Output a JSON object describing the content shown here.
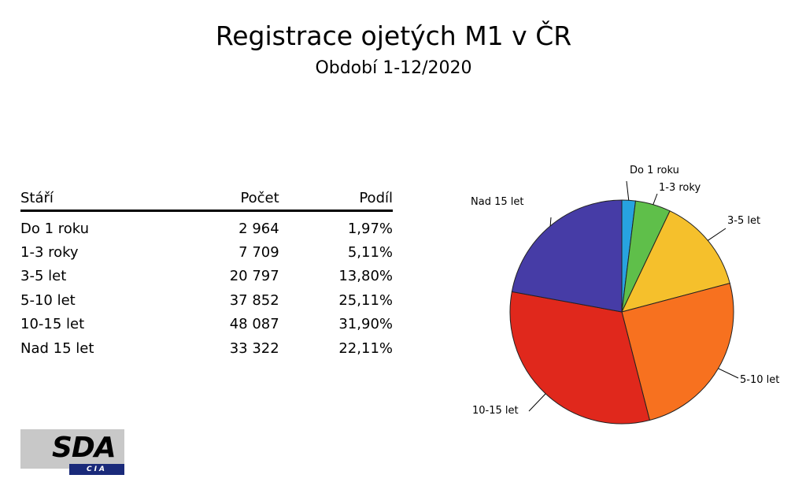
{
  "header": {
    "title": "Registrace ojetých M1 v ČR",
    "subtitle": "Období 1-12/2020"
  },
  "table": {
    "columns": [
      "Stáří",
      "Počet",
      "Podíl"
    ],
    "rows": [
      {
        "label": "Do 1 roku",
        "count": "2 964",
        "share": "1,97%"
      },
      {
        "label": "1-3 roky",
        "count": "7 709",
        "share": "5,11%"
      },
      {
        "label": "3-5 let",
        "count": "20 797",
        "share": "13,80%"
      },
      {
        "label": "5-10 let",
        "count": "37 852",
        "share": "25,11%"
      },
      {
        "label": "10-15 let",
        "count": "48 087",
        "share": "31,90%"
      },
      {
        "label": "Nad 15 let",
        "count": "33 322",
        "share": "22,11%"
      }
    ]
  },
  "chart_data": {
    "type": "pie",
    "title": "Registrace ojetých M1 v ČR",
    "subtitle": "Období 1-12/2020",
    "categories": [
      "Do 1 roku",
      "1-3 roky",
      "3-5 let",
      "5-10 let",
      "10-15 let",
      "Nad 15 let"
    ],
    "values": [
      2964,
      7709,
      20797,
      37852,
      48087,
      33322
    ],
    "percentages": [
      1.97,
      5.11,
      13.8,
      25.11,
      31.9,
      22.11
    ],
    "colors": [
      "#27a3e0",
      "#5fbf4a",
      "#f5c02c",
      "#f7711f",
      "#e0281c",
      "#463ca6"
    ],
    "start_angle": "12 o'clock",
    "direction": "clockwise"
  },
  "logo": {
    "text": "SDA",
    "subtext": "CIA",
    "colors": {
      "background": "#c8c8c8",
      "bar": "#1a2a7a"
    }
  }
}
